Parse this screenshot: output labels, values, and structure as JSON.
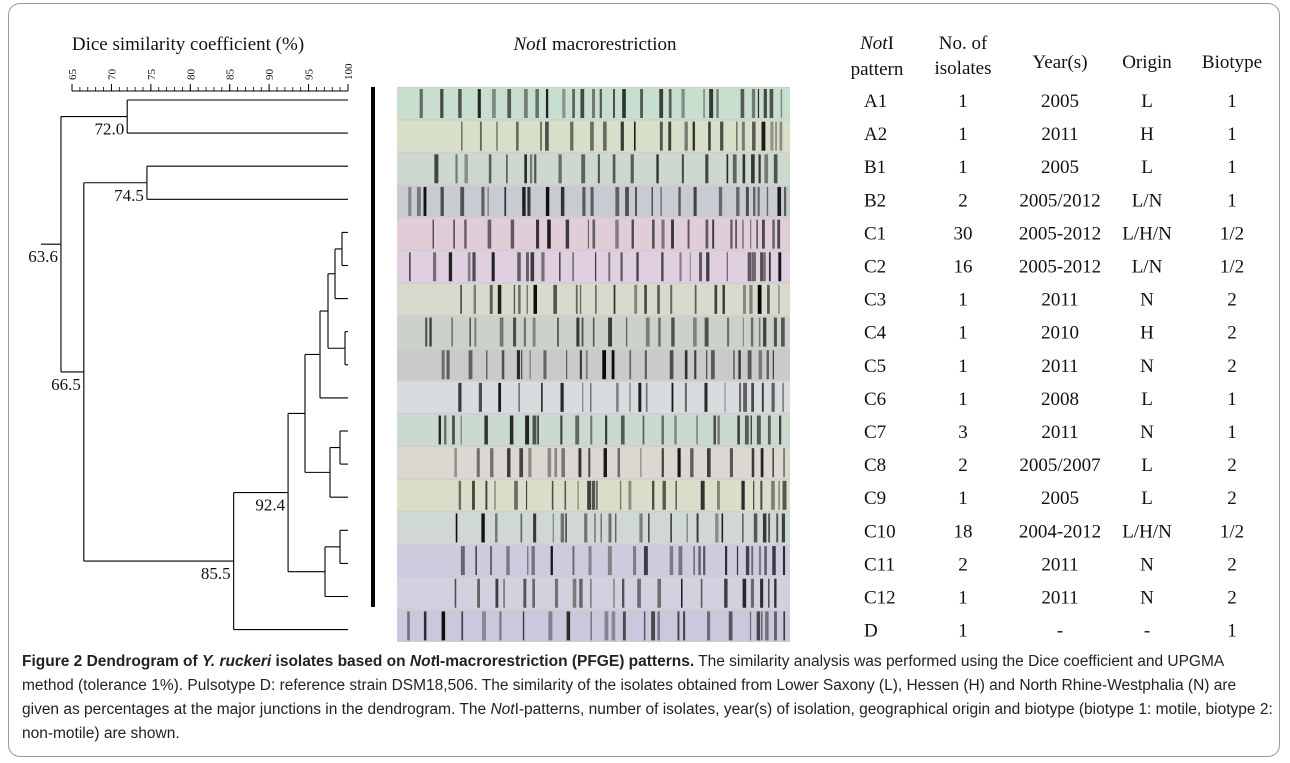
{
  "dendrogram": {
    "axis_title": "Dice similarity coefficient (%)",
    "ticks": [
      "65",
      "70",
      "75",
      "80",
      "85",
      "90",
      "95",
      "100"
    ],
    "node_labels": [
      "63.6",
      "72.0",
      "66.5",
      "74.5",
      "85.5",
      "92.4"
    ]
  },
  "gel": {
    "title": [
      "Not",
      "I macrorestriction"
    ]
  },
  "table": {
    "headers": [
      [
        "Not",
        "I",
        "pattern"
      ],
      [
        "No. of",
        "isolates"
      ],
      [
        "Year(s)"
      ],
      [
        "Origin"
      ],
      [
        "Biotype"
      ]
    ],
    "rows": [
      [
        "A1",
        "1",
        "2005",
        "L",
        "1"
      ],
      [
        "A2",
        "1",
        "2011",
        "H",
        "1"
      ],
      [
        "B1",
        "1",
        "2005",
        "L",
        "1"
      ],
      [
        "B2",
        "2",
        "2005/2012",
        "L/N",
        "1"
      ],
      [
        "C1",
        "30",
        "2005-2012",
        "L/H/N",
        "1/2"
      ],
      [
        "C2",
        "16",
        "2005-2012",
        "L/N",
        "1/2"
      ],
      [
        "C3",
        "1",
        "2011",
        "N",
        "2"
      ],
      [
        "C4",
        "1",
        "2010",
        "H",
        "2"
      ],
      [
        "C5",
        "1",
        "2011",
        "N",
        "2"
      ],
      [
        "C6",
        "1",
        "2008",
        "L",
        "1"
      ],
      [
        "C7",
        "3",
        "2011",
        "N",
        "1"
      ],
      [
        "C8",
        "2",
        "2005/2007",
        "L",
        "2"
      ],
      [
        "C9",
        "1",
        "2005",
        "L",
        "2"
      ],
      [
        "C10",
        "18",
        "2004-2012",
        "L/H/N",
        "1/2"
      ],
      [
        "C11",
        "2",
        "2011",
        "N",
        "2"
      ],
      [
        "C12",
        "1",
        "2011",
        "N",
        "2"
      ],
      [
        "D",
        "1",
        "-",
        "-",
        "1"
      ]
    ]
  },
  "caption": {
    "title": [
      "Figure 2 Dendrogram of ",
      "Y. ruckeri",
      " isolates based on ",
      "Not",
      "I-macrorestriction (PFGE) patterns."
    ],
    "body": [
      " The similarity analysis was performed using the Dice coefficient and UPGMA method (tolerance 1%). Pulsotype D: reference strain DSM18,506. The similarity of the isolates obtained from Lower Saxony (L), Hessen (H) and North Rhine-Westphalia (N) are given as percentages at the major junctions in the dendrogram. The ",
      "Not",
      "I-patterns, number of isolates, year(s) of isolation, geographical origin and biotype (biotype 1: motile, biotype 2: non-motile) are shown."
    ]
  }
}
